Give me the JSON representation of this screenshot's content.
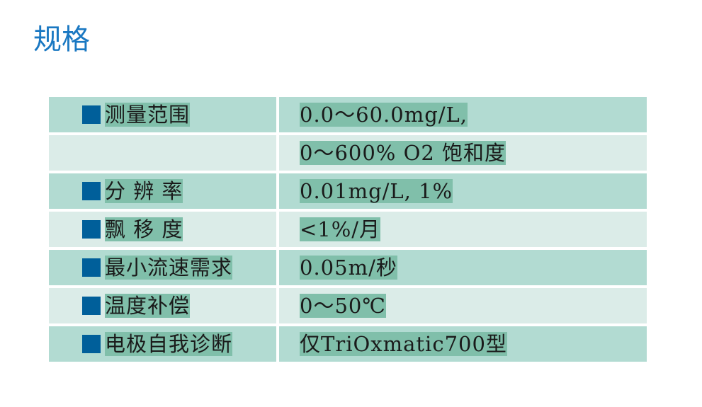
{
  "title": "规格",
  "colors": {
    "title": "#1a78c2",
    "row_dark": "#b2dbd2",
    "row_light": "#dbece8",
    "highlight": "#80bfaa",
    "bullet": "#005f9a"
  },
  "rows": [
    {
      "label": "测量范围",
      "value": "0.0～60.0mg/L,",
      "bullet": true
    },
    {
      "label": "",
      "value": "0～600% O2 饱和度",
      "bullet": false
    },
    {
      "label": "分 辨 率",
      "value": "0.01mg/L, 1%",
      "bullet": true
    },
    {
      "label": "飘 移 度",
      "value": "<1%/月",
      "bullet": true
    },
    {
      "label": "最小流速需求",
      "value": "0.05m/秒",
      "bullet": true
    },
    {
      "label": "温度补偿",
      "value": "0～50℃",
      "bullet": true
    },
    {
      "label": "电极自我诊断",
      "value": "仅TriOxmatic700型",
      "bullet": true
    }
  ]
}
